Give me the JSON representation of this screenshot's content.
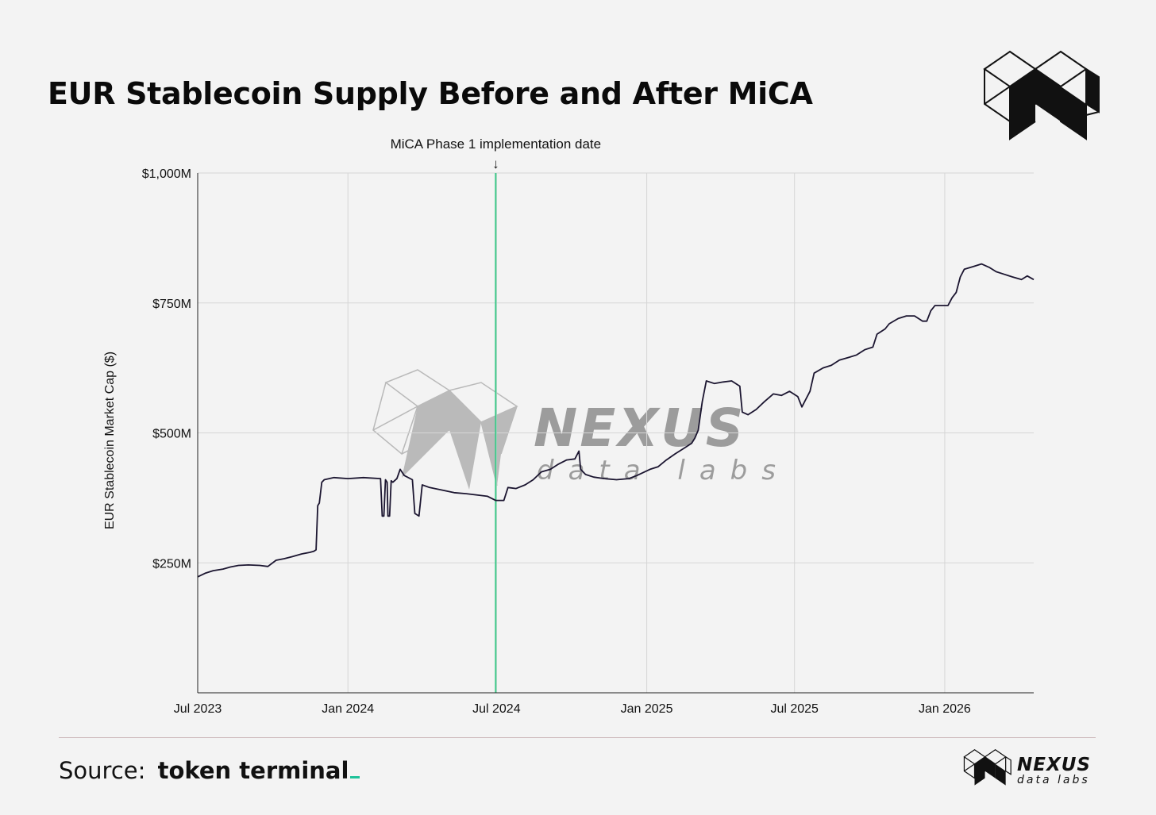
{
  "title": "EUR Stablecoin Supply Before and After MiCA",
  "source": {
    "label": "Source:",
    "name": "token terminal"
  },
  "brand": {
    "name": "NEXUS",
    "tagline": "data labs"
  },
  "colors": {
    "line": "#1b1530",
    "annotation_line": "#3ec98a",
    "grid": "#d6d6d6",
    "accent": "#1fc29a"
  },
  "chart_data": {
    "type": "line",
    "title": "EUR Stablecoin Supply Before and After MiCA",
    "xlabel": "",
    "ylabel": "EUR Stablecoin Market Cap ($)",
    "ylim": [
      0,
      1000
    ],
    "y_unit": "$M",
    "y_ticks": [
      250,
      500,
      750,
      1000
    ],
    "y_tick_labels": [
      "$250M",
      "$500M",
      "$750M",
      "$1,000M"
    ],
    "x_range": [
      "2023-07-01",
      "2026-04-20"
    ],
    "x_ticks": [
      "2023-07-01",
      "2024-01-01",
      "2024-07-01",
      "2025-01-01",
      "2025-07-01",
      "2026-01-01"
    ],
    "x_tick_labels": [
      "Jul 2023",
      "Jan 2024",
      "Jul 2024",
      "Jan 2025",
      "Jul 2025",
      "Jan 2026"
    ],
    "grid": true,
    "legend": "none",
    "annotations": [
      {
        "x": "2024-06-30",
        "label": "MiCA Phase 1 implementation date",
        "arrow": "↓"
      }
    ],
    "series": [
      {
        "points": [
          [
            "2023-07-01",
            223
          ],
          [
            "2023-07-10",
            230
          ],
          [
            "2023-07-20",
            235
          ],
          [
            "2023-08-01",
            238
          ],
          [
            "2023-08-10",
            242
          ],
          [
            "2023-08-20",
            245
          ],
          [
            "2023-09-01",
            246
          ],
          [
            "2023-09-15",
            245
          ],
          [
            "2023-09-25",
            243
          ],
          [
            "2023-10-05",
            255
          ],
          [
            "2023-10-15",
            258
          ],
          [
            "2023-10-25",
            262
          ],
          [
            "2023-11-05",
            267
          ],
          [
            "2023-11-15",
            270
          ],
          [
            "2023-11-20",
            272
          ],
          [
            "2023-11-23",
            275
          ],
          [
            "2023-11-25",
            360
          ],
          [
            "2023-11-27",
            365
          ],
          [
            "2023-11-30",
            405
          ],
          [
            "2023-12-03",
            410
          ],
          [
            "2023-12-15",
            414
          ],
          [
            "2024-01-01",
            412
          ],
          [
            "2024-01-20",
            414
          ],
          [
            "2024-02-10",
            412
          ],
          [
            "2024-02-12",
            340
          ],
          [
            "2024-02-14",
            340
          ],
          [
            "2024-02-16",
            410
          ],
          [
            "2024-02-18",
            405
          ],
          [
            "2024-02-19",
            340
          ],
          [
            "2024-02-21",
            340
          ],
          [
            "2024-02-23",
            408
          ],
          [
            "2024-02-25",
            405
          ],
          [
            "2024-03-01",
            412
          ],
          [
            "2024-03-05",
            430
          ],
          [
            "2024-03-10",
            418
          ],
          [
            "2024-03-20",
            410
          ],
          [
            "2024-03-23",
            345
          ],
          [
            "2024-03-28",
            340
          ],
          [
            "2024-04-01",
            400
          ],
          [
            "2024-04-10",
            395
          ],
          [
            "2024-04-25",
            390
          ],
          [
            "2024-05-10",
            385
          ],
          [
            "2024-05-25",
            383
          ],
          [
            "2024-06-10",
            380
          ],
          [
            "2024-06-20",
            378
          ],
          [
            "2024-06-30",
            370
          ],
          [
            "2024-07-10",
            370
          ],
          [
            "2024-07-15",
            395
          ],
          [
            "2024-07-25",
            393
          ],
          [
            "2024-08-05",
            400
          ],
          [
            "2024-08-15",
            410
          ],
          [
            "2024-08-25",
            425
          ],
          [
            "2024-09-05",
            430
          ],
          [
            "2024-09-15",
            440
          ],
          [
            "2024-09-25",
            448
          ],
          [
            "2024-10-05",
            450
          ],
          [
            "2024-10-10",
            465
          ],
          [
            "2024-10-12",
            430
          ],
          [
            "2024-10-18",
            420
          ],
          [
            "2024-10-28",
            415
          ],
          [
            "2024-11-10",
            412
          ],
          [
            "2024-11-25",
            410
          ],
          [
            "2024-12-10",
            412
          ],
          [
            "2024-12-20",
            418
          ],
          [
            "2025-01-05",
            430
          ],
          [
            "2025-01-15",
            435
          ],
          [
            "2025-01-25",
            448
          ],
          [
            "2025-02-05",
            460
          ],
          [
            "2025-02-15",
            470
          ],
          [
            "2025-02-25",
            480
          ],
          [
            "2025-03-01",
            490
          ],
          [
            "2025-03-05",
            505
          ],
          [
            "2025-03-10",
            560
          ],
          [
            "2025-03-15",
            600
          ],
          [
            "2025-03-25",
            595
          ],
          [
            "2025-04-05",
            598
          ],
          [
            "2025-04-15",
            600
          ],
          [
            "2025-04-25",
            590
          ],
          [
            "2025-04-28",
            540
          ],
          [
            "2025-05-05",
            535
          ],
          [
            "2025-05-15",
            545
          ],
          [
            "2025-05-25",
            560
          ],
          [
            "2025-06-05",
            575
          ],
          [
            "2025-06-15",
            572
          ],
          [
            "2025-06-25",
            580
          ],
          [
            "2025-07-05",
            570
          ],
          [
            "2025-07-10",
            550
          ],
          [
            "2025-07-15",
            565
          ],
          [
            "2025-07-20",
            580
          ],
          [
            "2025-07-25",
            615
          ],
          [
            "2025-08-05",
            625
          ],
          [
            "2025-08-15",
            630
          ],
          [
            "2025-08-25",
            640
          ],
          [
            "2025-09-05",
            645
          ],
          [
            "2025-09-15",
            650
          ],
          [
            "2025-09-25",
            660
          ],
          [
            "2025-10-05",
            665
          ],
          [
            "2025-10-10",
            690
          ],
          [
            "2025-10-20",
            700
          ],
          [
            "2025-10-25",
            710
          ],
          [
            "2025-11-05",
            720
          ],
          [
            "2025-11-15",
            725
          ],
          [
            "2025-11-25",
            725
          ],
          [
            "2025-12-05",
            715
          ],
          [
            "2025-12-10",
            715
          ],
          [
            "2025-12-15",
            735
          ],
          [
            "2025-12-20",
            745
          ],
          [
            "2026-01-05",
            745
          ],
          [
            "2026-01-10",
            760
          ],
          [
            "2026-01-15",
            770
          ],
          [
            "2026-01-20",
            800
          ],
          [
            "2026-01-25",
            815
          ],
          [
            "2026-02-05",
            820
          ],
          [
            "2026-02-15",
            825
          ],
          [
            "2026-02-25",
            818
          ],
          [
            "2026-03-05",
            810
          ],
          [
            "2026-03-15",
            805
          ],
          [
            "2026-03-25",
            800
          ],
          [
            "2026-04-05",
            795
          ],
          [
            "2026-04-12",
            802
          ],
          [
            "2026-04-20",
            795
          ]
        ]
      }
    ]
  }
}
